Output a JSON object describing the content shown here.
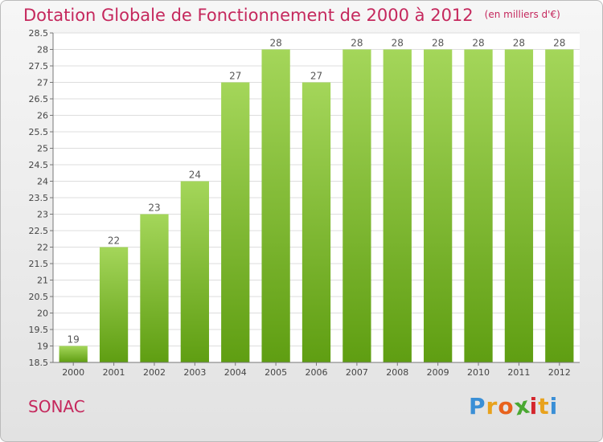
{
  "header": {
    "title": "Dotation Globale de Fonctionnement de 2000 à 2012",
    "unit": "(en milliers d'€)"
  },
  "footer": {
    "commune": "SONAC",
    "brand": "Proxiti",
    "brand_letters": [
      "P",
      "r",
      "o",
      "x",
      "i",
      "t",
      "i"
    ],
    "brand_colors": [
      "#3a8fd6",
      "#e8a21d",
      "#e8621d",
      "#4aa832",
      "#d4262d",
      "#e8a21d",
      "#3a8fd6"
    ]
  },
  "colors": {
    "accent": "#c5285d",
    "bar_top": "#a4d65a",
    "bar_bottom": "#5f9e12",
    "grid": "#dddddd"
  },
  "chart_data": {
    "type": "bar",
    "title": "Dotation Globale de Fonctionnement de 2000 à 2012",
    "subtitle": "(en milliers d'€)",
    "categories": [
      "2000",
      "2001",
      "2002",
      "2003",
      "2004",
      "2005",
      "2006",
      "2007",
      "2008",
      "2009",
      "2010",
      "2011",
      "2012"
    ],
    "values": [
      19,
      22,
      23,
      24,
      27,
      28,
      27,
      28,
      28,
      28,
      28,
      28,
      28
    ],
    "data_labels": [
      "19",
      "22",
      "23",
      "24",
      "27",
      "28",
      "27",
      "28",
      "28",
      "28",
      "28",
      "28",
      "28"
    ],
    "ylim": [
      18.5,
      28.5
    ],
    "yticks": [
      "18.5",
      "19",
      "19.5",
      "20",
      "20.5",
      "21",
      "21.5",
      "22",
      "22.5",
      "23",
      "23.5",
      "24",
      "24.5",
      "25",
      "25.5",
      "26",
      "26.5",
      "27",
      "27.5",
      "28",
      "28.5"
    ],
    "xlabel": "",
    "ylabel": "",
    "grid": true
  }
}
